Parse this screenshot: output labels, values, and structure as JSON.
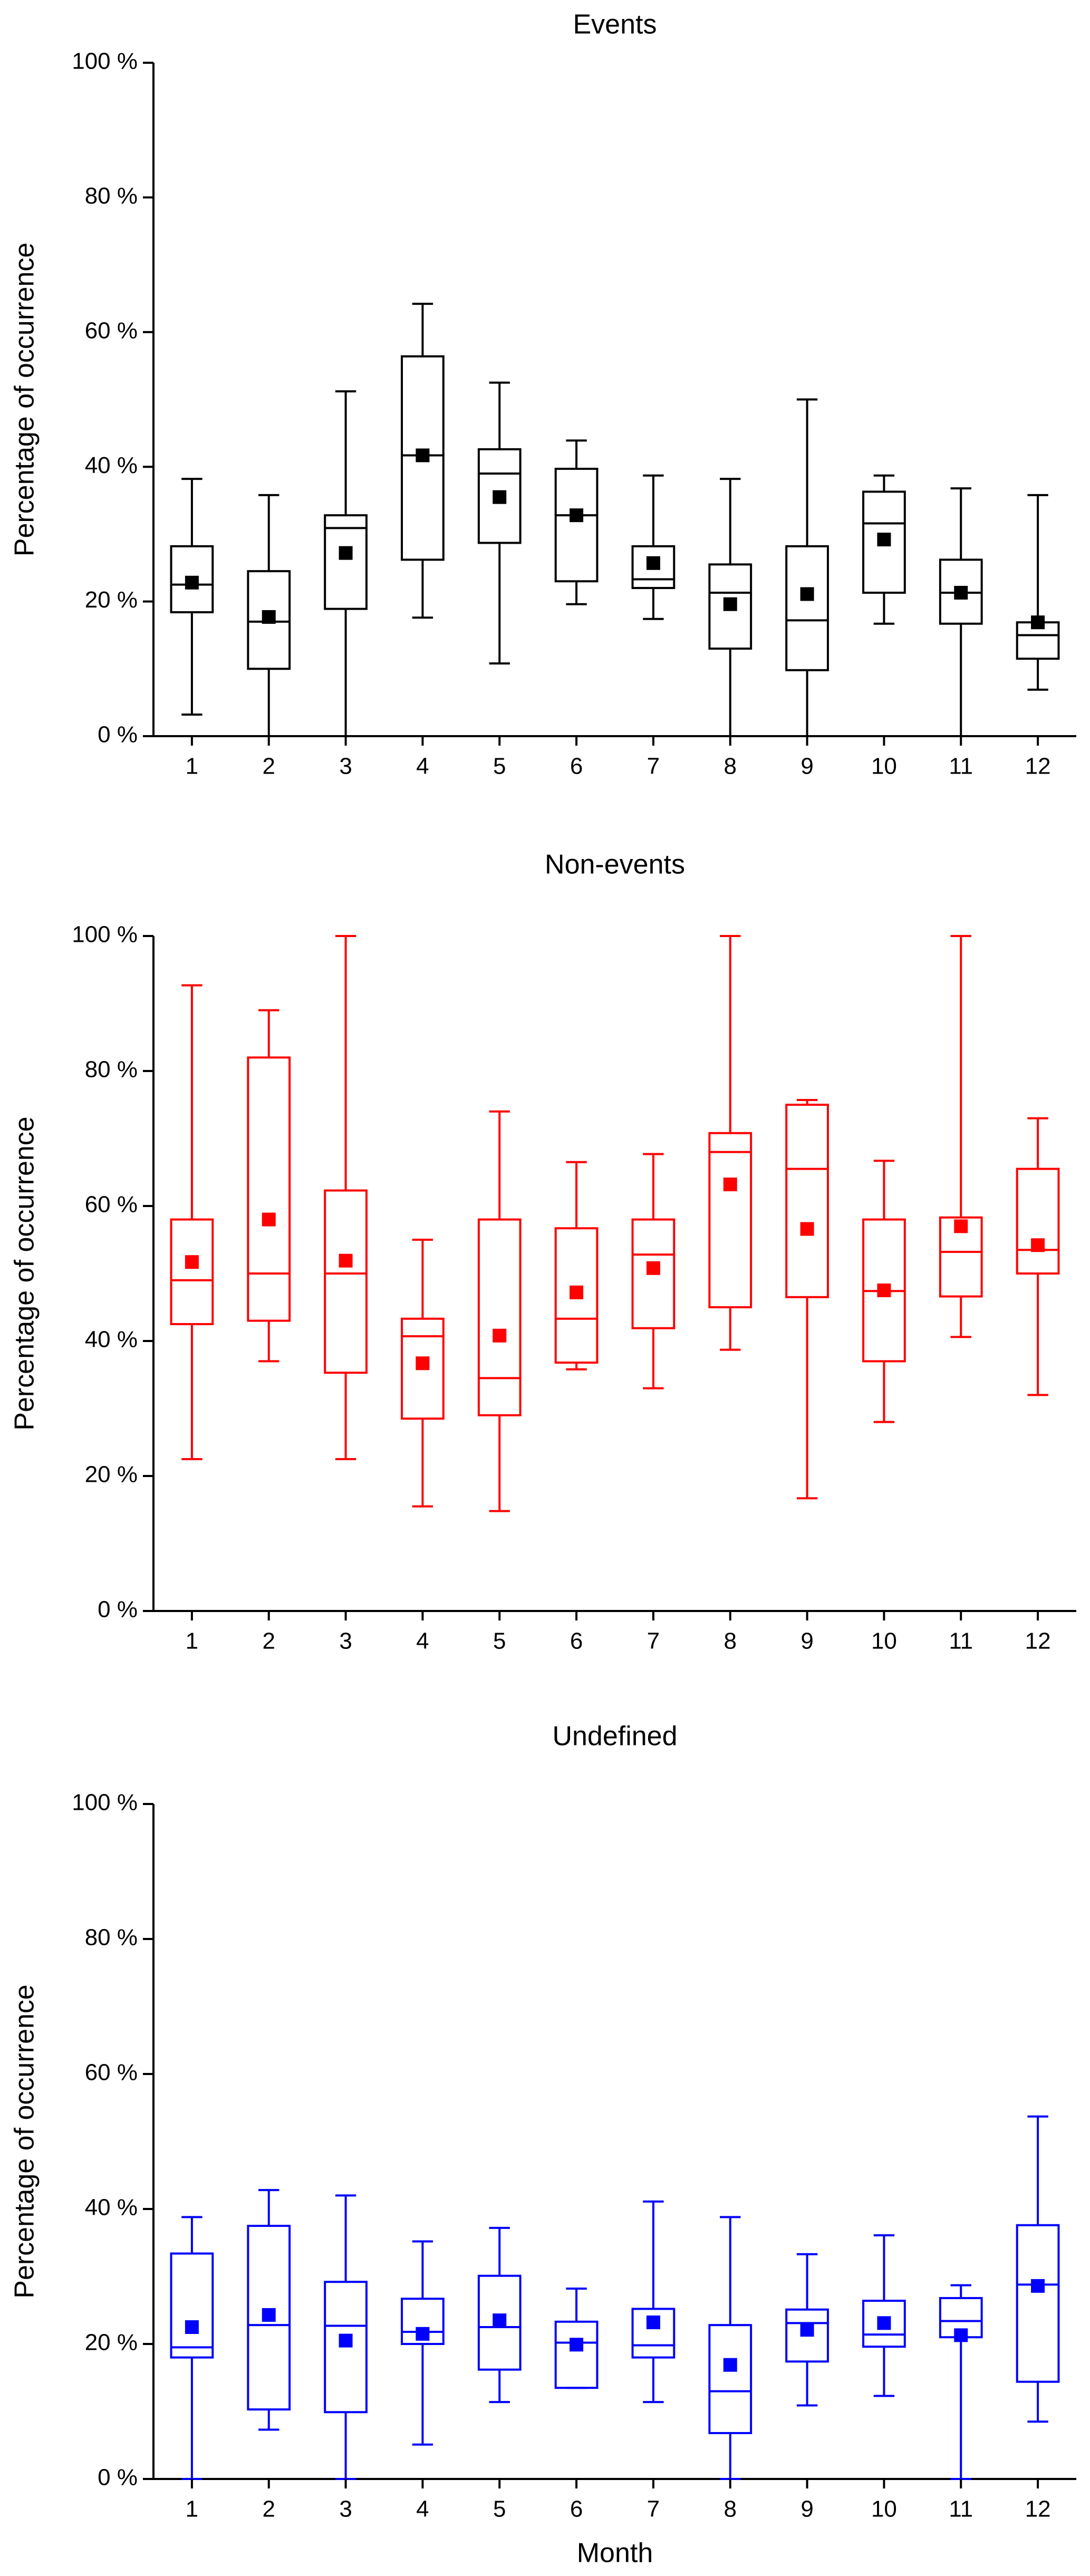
{
  "chart_data": [
    {
      "type": "box",
      "title": "Events",
      "ylabel": "Percentage of occurrence",
      "categories": [
        "1",
        "2",
        "3",
        "4",
        "5",
        "6",
        "7",
        "8",
        "9",
        "10",
        "11",
        "12"
      ],
      "ylim": [
        0,
        100
      ],
      "yticks": [
        {
          "value": 0,
          "label": "0 %"
        },
        {
          "value": 20,
          "label": "20 %"
        },
        {
          "value": 40,
          "label": "40 %"
        },
        {
          "value": 60,
          "label": "60 %"
        },
        {
          "value": 80,
          "label": "80 %"
        },
        {
          "value": 100,
          "label": "100 %"
        }
      ],
      "color": "#000000",
      "low": [
        3.2,
        0,
        0,
        17.6,
        10.8,
        19.6,
        17.4,
        0,
        0,
        16.7,
        0,
        6.9
      ],
      "q1": [
        18.4,
        10,
        18.9,
        26.2,
        28.7,
        23,
        22,
        13,
        9.8,
        21.3,
        16.7,
        11.5
      ],
      "median": [
        22.5,
        17,
        30.9,
        41.7,
        39,
        32.8,
        23.3,
        21.3,
        17.2,
        31.6,
        21.3,
        15
      ],
      "q3": [
        28.2,
        24.5,
        32.8,
        56.4,
        42.6,
        39.7,
        28.2,
        25.5,
        28.2,
        36.3,
        26.2,
        16.9
      ],
      "high": [
        38.2,
        35.8,
        51.2,
        64.2,
        52.5,
        43.9,
        38.7,
        38.2,
        50,
        38.7,
        36.8,
        35.8
      ],
      "mean": [
        22.8,
        17.7,
        27.2,
        41.7,
        35.5,
        32.8,
        25.7,
        19.6,
        21.1,
        29.2,
        21.3,
        16.9
      ]
    },
    {
      "type": "box",
      "title": "Non-events",
      "ylabel": "Percentage of occurrence",
      "categories": [
        "1",
        "2",
        "3",
        "4",
        "5",
        "6",
        "7",
        "8",
        "9",
        "10",
        "11",
        "12"
      ],
      "ylim": [
        0,
        100
      ],
      "yticks": [
        {
          "value": 0,
          "label": "0 %"
        },
        {
          "value": 20,
          "label": "20 %"
        },
        {
          "value": 40,
          "label": "40 %"
        },
        {
          "value": 60,
          "label": "60 %"
        },
        {
          "value": 80,
          "label": "80 %"
        },
        {
          "value": 100,
          "label": "100 %"
        }
      ],
      "color": "#ff0000",
      "low": [
        22.5,
        37,
        22.5,
        15.5,
        14.8,
        35.8,
        33,
        38.7,
        16.7,
        28,
        40.6,
        32
      ],
      "q1": [
        42.5,
        43,
        35.3,
        28.5,
        29,
        36.8,
        41.9,
        45,
        46.5,
        37,
        46.6,
        50
      ],
      "median": [
        49,
        50,
        50,
        40.7,
        34.5,
        43.3,
        52.8,
        68,
        65.5,
        47.4,
        53.2,
        53.5
      ],
      "q3": [
        58,
        82,
        62.3,
        43.3,
        58,
        56.7,
        58,
        70.8,
        75,
        58,
        58.3,
        65.5
      ],
      "high": [
        92.7,
        89,
        100,
        55,
        74,
        66.5,
        67.7,
        100,
        75.7,
        66.7,
        100,
        73
      ],
      "mean": [
        51.7,
        58,
        51.9,
        36.7,
        40.8,
        47.2,
        50.8,
        63.2,
        56.6,
        47.5,
        57,
        54.2
      ]
    },
    {
      "type": "box",
      "title": "Undefined",
      "ylabel": "Percentage of occurrence",
      "xlabel": "Month",
      "categories": [
        "1",
        "2",
        "3",
        "4",
        "5",
        "6",
        "7",
        "8",
        "9",
        "10",
        "11",
        "12"
      ],
      "ylim": [
        0,
        100
      ],
      "yticks": [
        {
          "value": 0,
          "label": "0 %"
        },
        {
          "value": 20,
          "label": "20 %"
        },
        {
          "value": 40,
          "label": "40 %"
        },
        {
          "value": 60,
          "label": "60 %"
        },
        {
          "value": 80,
          "label": "80 %"
        },
        {
          "value": 100,
          "label": "100 %"
        }
      ],
      "color": "#0000ff",
      "low": [
        0,
        7.3,
        0,
        5.1,
        11.4,
        13.5,
        11.4,
        0,
        10.9,
        12.3,
        0,
        8.5
      ],
      "q1": [
        18,
        10.3,
        9.9,
        20,
        16.2,
        13.5,
        18,
        6.8,
        17.4,
        19.6,
        21,
        14.4
      ],
      "median": [
        19.5,
        22.8,
        22.7,
        21.8,
        22.5,
        20.2,
        19.8,
        13,
        23.1,
        21.4,
        23.4,
        28.8
      ],
      "q3": [
        33.4,
        37.5,
        29.2,
        26.7,
        30.1,
        23.3,
        25.2,
        22.8,
        25.1,
        26.4,
        26.8,
        37.6
      ],
      "high": [
        38.8,
        42.8,
        42,
        35.2,
        37.2,
        28.2,
        41.1,
        38.8,
        33.3,
        36.1,
        28.7,
        53.7
      ],
      "mean": [
        22.5,
        24.3,
        20.5,
        21.5,
        23.5,
        19.9,
        23.2,
        16.9,
        22.1,
        23.1,
        21.3,
        28.6
      ]
    }
  ]
}
